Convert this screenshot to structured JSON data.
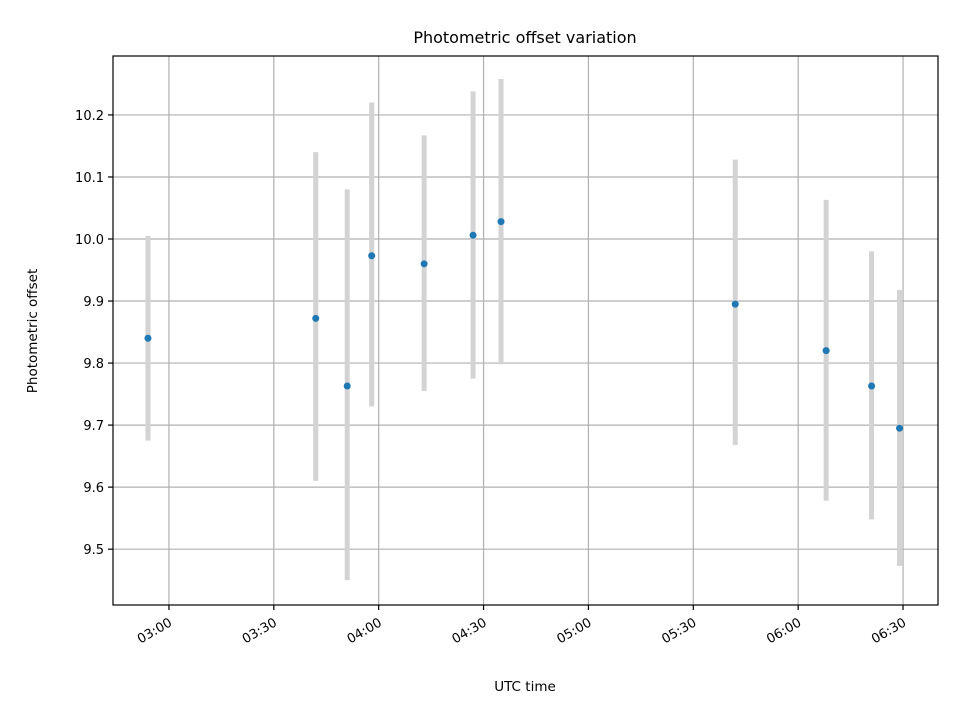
{
  "chart_data": {
    "type": "scatter",
    "title": "Photometric offset variation",
    "xlabel": "UTC time",
    "ylabel": "Photometric offset",
    "xlim": [
      "02:44",
      "06:40"
    ],
    "ylim": [
      9.41,
      10.295
    ],
    "grid": true,
    "x_ticks": [
      "03:00",
      "03:30",
      "04:00",
      "04:30",
      "05:00",
      "05:30",
      "06:00",
      "06:30"
    ],
    "y_ticks": [
      "9.5",
      "9.6",
      "9.7",
      "9.8",
      "9.9",
      "10.0",
      "10.1",
      "10.2"
    ],
    "series": [
      {
        "errorbar_color": "#d3d3d3",
        "marker_color": "#1f77b4",
        "points": [
          {
            "time": "02:54",
            "value": 9.84,
            "low": 9.675,
            "high": 10.005
          },
          {
            "time": "03:42",
            "value": 9.872,
            "low": 9.61,
            "high": 10.14
          },
          {
            "time": "03:51",
            "value": 9.763,
            "low": 9.45,
            "high": 10.08
          },
          {
            "time": "03:58",
            "value": 9.973,
            "low": 9.73,
            "high": 10.22
          },
          {
            "time": "04:13",
            "value": 9.96,
            "low": 9.755,
            "high": 10.167
          },
          {
            "time": "04:27",
            "value": 10.006,
            "low": 9.775,
            "high": 10.238
          },
          {
            "time": "04:35",
            "value": 10.028,
            "low": 9.798,
            "high": 10.258
          },
          {
            "time": "05:42",
            "value": 9.895,
            "low": 9.668,
            "high": 10.128
          },
          {
            "time": "06:08",
            "value": 9.82,
            "low": 9.578,
            "high": 10.063
          },
          {
            "time": "06:21",
            "value": 9.763,
            "low": 9.548,
            "high": 9.98
          },
          {
            "time": "06:29",
            "value": 9.695,
            "low": 9.473,
            "high": 9.918
          }
        ]
      }
    ]
  }
}
